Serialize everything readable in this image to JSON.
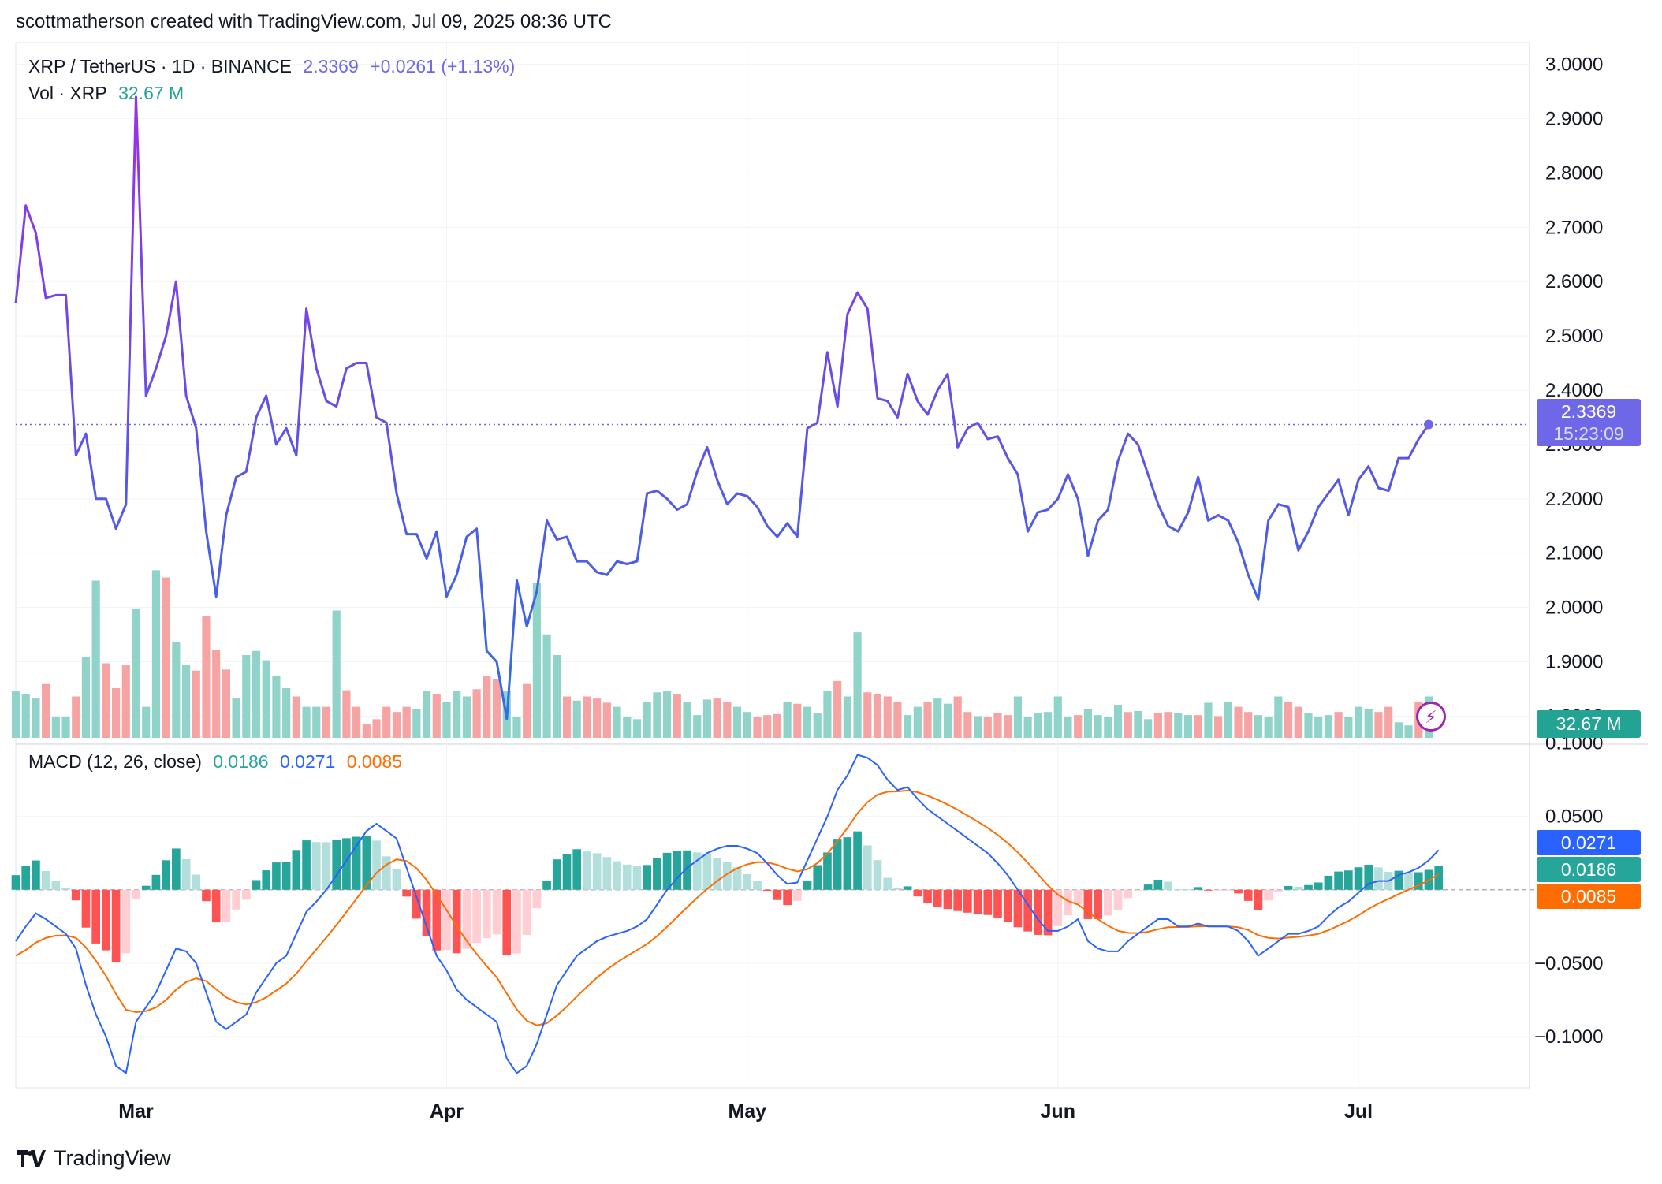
{
  "header": {
    "caption": "scottmatherson created with TradingView.com, Jul 09, 2025 08:36 UTC"
  },
  "legend": {
    "symbol": "XRP / TetherUS · 1D · BINANCE",
    "price": "2.3369",
    "change": "+0.0261 (+1.13%)",
    "vol_label": "Vol · XRP",
    "vol_value": "32.67 M",
    "macd_label": "MACD (12, 26, close)",
    "macd_hist": "0.0186",
    "macd_line": "0.0271",
    "macd_signal": "0.0085"
  },
  "price_badge": {
    "price": "2.3369",
    "countdown": "15:23:09"
  },
  "vol_badge": "32.67 M",
  "macd_badges": {
    "macd": "0.0271",
    "hist": "0.0186",
    "signal": "0.0085"
  },
  "brand": {
    "name": "TradingView"
  },
  "colors": {
    "price_gradient_start": "#9b30e6",
    "price_gradient_end": "#2d6fe6",
    "volume_up": "#8fd3c9",
    "volume_down": "#f5a3a3",
    "macd_line": "#2962ff",
    "signal_line": "#ff6d00",
    "hist_up_strong": "#26a69a",
    "hist_up_weak": "#b2dfdb",
    "hist_down_strong": "#ff5252",
    "hist_down_weak": "#ffcdd2",
    "price_badge": "#6e68e9",
    "brand_icon": "bolt-icon"
  },
  "chart_data": [
    {
      "type": "line",
      "title": "XRP / TetherUS · 1D · BINANCE",
      "x_start": "2025-02-17",
      "x_end": "2025-07-09",
      "x_ticks": [
        "Mar",
        "Apr",
        "May",
        "Jun",
        "Jul"
      ],
      "y_ticks": [
        "3.0000",
        "2.9000",
        "2.8000",
        "2.7000",
        "2.6000",
        "2.5000",
        "2.4000",
        "2.3000",
        "2.2000",
        "2.1000",
        "2.0000",
        "1.9000",
        "1.8000"
      ],
      "ylim": [
        1.76,
        3.04
      ],
      "last_price": 2.3369,
      "series": [
        {
          "values": [
            2.56,
            2.74,
            2.69,
            2.57,
            2.575,
            2.575,
            2.28,
            2.32,
            2.2,
            2.2,
            2.145,
            2.19,
            2.94,
            2.39,
            2.44,
            2.5,
            2.6,
            2.39,
            2.33,
            2.14,
            2.02,
            2.17,
            2.24,
            2.25,
            2.35,
            2.39,
            2.3,
            2.33,
            2.28,
            2.55,
            2.44,
            2.38,
            2.37,
            2.44,
            2.45,
            2.45,
            2.35,
            2.34,
            2.21,
            2.135,
            2.135,
            2.09,
            2.14,
            2.02,
            2.06,
            2.13,
            2.145,
            1.92,
            1.9,
            1.795,
            2.05,
            1.965,
            2.03,
            2.16,
            2.125,
            2.13,
            2.085,
            2.085,
            2.065,
            2.06,
            2.085,
            2.08,
            2.085,
            2.21,
            2.215,
            2.2,
            2.18,
            2.19,
            2.25,
            2.295,
            2.235,
            2.19,
            2.21,
            2.205,
            2.185,
            2.15,
            2.13,
            2.155,
            2.13,
            2.33,
            2.34,
            2.47,
            2.37,
            2.54,
            2.58,
            2.55,
            2.385,
            2.38,
            2.35,
            2.43,
            2.38,
            2.355,
            2.4,
            2.43,
            2.295,
            2.33,
            2.34,
            2.31,
            2.315,
            2.275,
            2.245,
            2.14,
            2.175,
            2.18,
            2.2,
            2.245,
            2.2,
            2.095,
            2.16,
            2.18,
            2.27,
            2.32,
            2.3,
            2.245,
            2.19,
            2.15,
            2.14,
            2.175,
            2.24,
            2.16,
            2.17,
            2.16,
            2.12,
            2.06,
            2.015,
            2.16,
            2.19,
            2.185,
            2.105,
            2.14,
            2.185,
            2.21,
            2.235,
            2.17,
            2.235,
            2.26,
            2.22,
            2.215,
            2.275,
            2.275,
            2.31,
            2.3369
          ]
        }
      ]
    },
    {
      "type": "bar",
      "title": "Vol · XRP",
      "ylim": [
        0,
        160
      ],
      "volume": [
        45,
        42,
        38,
        52,
        20,
        20,
        40,
        78,
        152,
        72,
        48,
        70,
        125,
        30,
        162,
        155,
        93,
        70,
        65,
        118,
        85,
        66,
        38,
        80,
        84,
        75,
        60,
        48,
        40,
        30,
        30,
        30,
        123,
        46,
        30,
        13,
        18,
        30,
        25,
        30,
        28,
        45,
        42,
        35,
        45,
        40,
        47,
        60,
        57,
        45,
        20,
        52,
        150,
        100,
        80,
        40,
        36,
        40,
        38,
        34,
        30,
        20,
        18,
        35,
        44,
        45,
        42,
        35,
        22,
        37,
        38,
        35,
        30,
        25,
        20,
        22,
        23,
        35,
        33,
        30,
        24,
        45,
        55,
        40,
        102,
        44,
        42,
        40,
        35,
        22,
        30,
        35,
        38,
        33,
        40,
        25,
        21,
        20,
        24,
        22,
        40,
        20,
        24,
        25,
        40,
        20,
        22,
        28,
        22,
        20,
        32,
        25,
        26,
        18,
        24,
        25,
        24,
        22,
        22,
        34,
        21,
        35,
        30,
        25,
        22,
        20,
        40,
        35,
        30,
        24,
        20,
        22,
        25,
        20,
        30,
        28,
        25,
        30,
        15,
        12,
        35,
        40
      ],
      "up": [
        1,
        1,
        1,
        0,
        1,
        1,
        0,
        1,
        1,
        0,
        0,
        0,
        1,
        1,
        1,
        0,
        1,
        1,
        0,
        0,
        0,
        0,
        1,
        1,
        1,
        1,
        1,
        1,
        0,
        1,
        1,
        0,
        1,
        0,
        0,
        0,
        0,
        0,
        0,
        0,
        1,
        1,
        0,
        1,
        1,
        1,
        0,
        0,
        0,
        1,
        1,
        0,
        1,
        1,
        1,
        0,
        1,
        0,
        0,
        0,
        1,
        1,
        1,
        1,
        1,
        1,
        0,
        1,
        1,
        1,
        0,
        0,
        1,
        1,
        0,
        0,
        0,
        1,
        0,
        1,
        1,
        1,
        0,
        1,
        1,
        0,
        0,
        0,
        0,
        1,
        1,
        0,
        1,
        1,
        0,
        0,
        1,
        0,
        0,
        0,
        1,
        1,
        1,
        1,
        1,
        1,
        0,
        1,
        1,
        1,
        1,
        0,
        1,
        1,
        0,
        0,
        1,
        1,
        0,
        1,
        0,
        1,
        0,
        0,
        1,
        1,
        1,
        0,
        0,
        1,
        1,
        1,
        0,
        1,
        1,
        1,
        0,
        0,
        1,
        1,
        0,
        1
      ]
    },
    {
      "type": "bar",
      "title": "MACD (12, 26, close)",
      "y_ticks": [
        "0.1000",
        "0.0500",
        "-0.0500",
        "-0.1000"
      ],
      "ylim": [
        -0.135,
        0.095
      ],
      "macd": [
        -0.035,
        -0.025,
        -0.016,
        -0.02,
        -0.025,
        -0.03,
        -0.04,
        -0.065,
        -0.085,
        -0.1,
        -0.12,
        -0.125,
        -0.09,
        -0.08,
        -0.07,
        -0.055,
        -0.04,
        -0.042,
        -0.05,
        -0.07,
        -0.09,
        -0.095,
        -0.09,
        -0.085,
        -0.07,
        -0.06,
        -0.05,
        -0.045,
        -0.03,
        -0.015,
        -0.008,
        0.0,
        0.01,
        0.02,
        0.03,
        0.04,
        0.045,
        0.04,
        0.035,
        0.015,
        -0.005,
        -0.025,
        -0.045,
        -0.055,
        -0.068,
        -0.075,
        -0.08,
        -0.085,
        -0.09,
        -0.115,
        -0.125,
        -0.12,
        -0.105,
        -0.085,
        -0.065,
        -0.055,
        -0.045,
        -0.04,
        -0.035,
        -0.032,
        -0.03,
        -0.028,
        -0.025,
        -0.02,
        -0.01,
        0.0,
        0.008,
        0.015,
        0.02,
        0.025,
        0.028,
        0.03,
        0.03,
        0.028,
        0.025,
        0.018,
        0.01,
        0.004,
        0.005,
        0.02,
        0.035,
        0.05,
        0.068,
        0.078,
        0.092,
        0.09,
        0.085,
        0.075,
        0.068,
        0.07,
        0.062,
        0.055,
        0.05,
        0.045,
        0.04,
        0.035,
        0.03,
        0.025,
        0.018,
        0.01,
        0.0,
        -0.01,
        -0.02,
        -0.028,
        -0.028,
        -0.025,
        -0.02,
        -0.035,
        -0.04,
        -0.042,
        -0.042,
        -0.035,
        -0.03,
        -0.025,
        -0.02,
        -0.02,
        -0.025,
        -0.025,
        -0.023,
        -0.025,
        -0.025,
        -0.025,
        -0.028,
        -0.035,
        -0.045,
        -0.04,
        -0.035,
        -0.03,
        -0.03,
        -0.028,
        -0.025,
        -0.018,
        -0.012,
        -0.008,
        -0.002,
        0.004,
        0.006,
        0.006,
        0.01,
        0.012,
        0.015,
        0.02,
        0.027
      ]
    }
  ]
}
